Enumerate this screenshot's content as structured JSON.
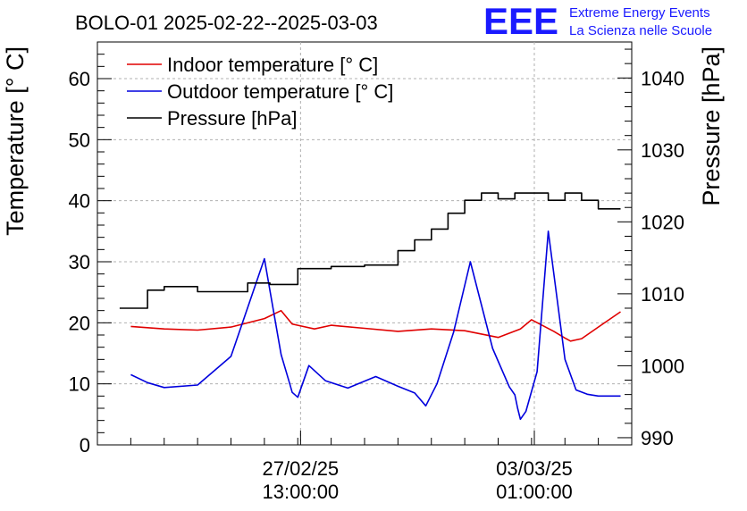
{
  "logo": {
    "mark": "EEE",
    "line1": "Extreme Energy Events",
    "line2": "La Scienza nelle Scuole",
    "color": "#1a1aff"
  },
  "chart_data": {
    "type": "line",
    "title": "BOLO-01 2025-02-22--2025-03-03",
    "ylabel": "Temperature [° C]",
    "y2label": "Pressure [hPa]",
    "ylim": [
      0,
      66
    ],
    "y2lim": [
      989,
      1045
    ],
    "yticks": [
      0,
      10,
      20,
      30,
      40,
      50,
      60
    ],
    "y2ticks": [
      990,
      1000,
      1010,
      1020,
      1030,
      1040
    ],
    "xlim": [
      "2025-02-24 12:00",
      "2025-03-04 12:00"
    ],
    "xticks": [
      {
        "x": "2025-02-27 13:00",
        "date": "27/02/25",
        "time": "13:00:00"
      },
      {
        "x": "2025-03-03 01:00",
        "date": "03/03/25",
        "time": "01:00:00"
      }
    ],
    "grid": true,
    "legend_position": "top-left",
    "series": [
      {
        "name": "Indoor temperature [° C]",
        "axis": "left",
        "color": "#e00000",
        "x": [
          "2025-02-25 00:00",
          "2025-02-25 12:00",
          "2025-02-26 00:00",
          "2025-02-26 12:00",
          "2025-02-27 00:00",
          "2025-02-27 06:00",
          "2025-02-27 10:00",
          "2025-02-27 12:00",
          "2025-02-27 18:00",
          "2025-02-28 00:00",
          "2025-02-28 12:00",
          "2025-03-01 00:00",
          "2025-03-01 12:00",
          "2025-03-02 00:00",
          "2025-03-02 12:00",
          "2025-03-02 20:00",
          "2025-03-03 00:00",
          "2025-03-03 08:00",
          "2025-03-03 12:00",
          "2025-03-03 14:00",
          "2025-03-03 18:00",
          "2025-03-04 00:00",
          "2025-03-04 08:00"
        ],
        "y": [
          19.4,
          19.0,
          18.8,
          19.3,
          20.7,
          22.0,
          19.8,
          19.6,
          19.0,
          19.6,
          19.1,
          18.6,
          19.0,
          18.7,
          17.6,
          19.0,
          20.5,
          18.6,
          17.5,
          17.0,
          17.4,
          19.3,
          21.8
        ]
      },
      {
        "name": "Outdoor temperature [° C]",
        "axis": "left",
        "color": "#0000dd",
        "x": [
          "2025-02-25 00:00",
          "2025-02-25 06:00",
          "2025-02-25 12:00",
          "2025-02-26 00:00",
          "2025-02-26 12:00",
          "2025-02-27 00:00",
          "2025-02-27 06:00",
          "2025-02-27 09:00",
          "2025-02-27 10:00",
          "2025-02-27 12:00",
          "2025-02-27 16:00",
          "2025-02-27 22:00",
          "2025-02-28 06:00",
          "2025-02-28 16:00",
          "2025-03-01 00:00",
          "2025-03-01 06:00",
          "2025-03-01 10:00",
          "2025-03-01 14:00",
          "2025-03-01 20:00",
          "2025-03-02 02:00",
          "2025-03-02 10:00",
          "2025-03-02 16:00",
          "2025-03-02 18:00",
          "2025-03-02 19:00",
          "2025-03-02 20:00",
          "2025-03-02 22:00",
          "2025-03-03 02:00",
          "2025-03-03 06:00",
          "2025-03-03 12:00",
          "2025-03-03 16:00",
          "2025-03-03 20:00",
          "2025-03-04 00:00",
          "2025-03-04 04:00",
          "2025-03-04 08:00"
        ],
        "y": [
          11.5,
          10.2,
          9.4,
          9.8,
          14.5,
          30.5,
          14.8,
          10.2,
          8.6,
          7.8,
          13.0,
          10.5,
          9.3,
          11.2,
          9.6,
          8.5,
          6.4,
          10.0,
          18.5,
          30.0,
          15.8,
          9.5,
          8.2,
          6.0,
          4.2,
          5.5,
          12.0,
          35.0,
          14.0,
          9.0,
          8.3,
          8.0,
          8.0,
          8.0
        ]
      },
      {
        "name": "Pressure [hPa]",
        "axis": "right",
        "color": "#000000",
        "x": [
          "2025-02-24 20:00",
          "2025-02-25 06:00",
          "2025-02-25 12:00",
          "2025-02-26 00:00",
          "2025-02-26 18:00",
          "2025-02-27 02:00",
          "2025-02-27 12:00",
          "2025-02-28 00:00",
          "2025-02-28 12:00",
          "2025-03-01 00:00",
          "2025-03-01 06:00",
          "2025-03-01 12:00",
          "2025-03-01 18:00",
          "2025-03-02 00:00",
          "2025-03-02 06:00",
          "2025-03-02 12:00",
          "2025-03-02 18:00",
          "2025-03-03 00:00",
          "2025-03-03 06:00",
          "2025-03-03 12:00",
          "2025-03-03 18:00",
          "2025-03-04 00:00",
          "2025-03-04 08:00"
        ],
        "y": [
          1008.0,
          1010.5,
          1011.0,
          1010.3,
          1011.5,
          1011.3,
          1013.5,
          1013.8,
          1014.0,
          1016.0,
          1017.5,
          1019.0,
          1021.2,
          1023.0,
          1024.0,
          1023.2,
          1024.0,
          1024.0,
          1023.0,
          1024.0,
          1023.0,
          1021.8,
          1021.8
        ]
      }
    ]
  }
}
